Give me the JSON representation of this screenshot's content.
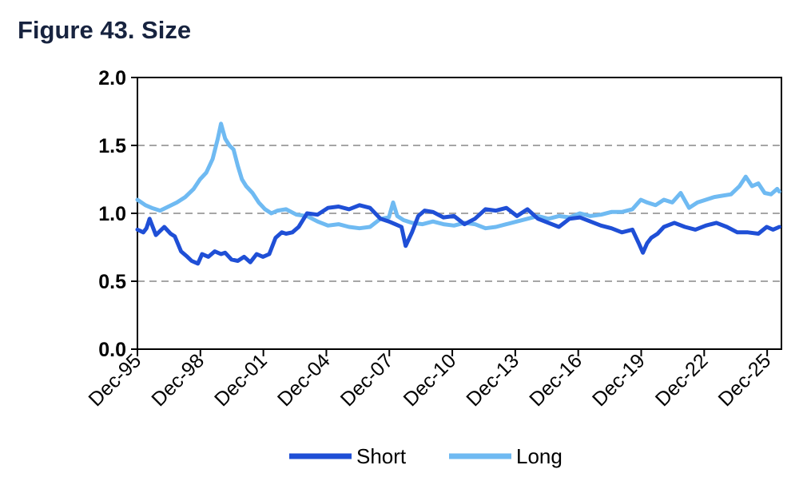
{
  "title": "Figure 43. Size",
  "colors": {
    "short": "#1f4fd6",
    "long": "#6fbaf2",
    "grid": "#a6a6a6",
    "axis": "#000000"
  },
  "chart_data": {
    "type": "line",
    "title": "Figure 43. Size",
    "xlabel": "",
    "ylabel": "",
    "ylim": [
      0.0,
      2.0
    ],
    "yticks": [
      0.0,
      0.5,
      1.0,
      1.5,
      2.0
    ],
    "ytick_labels": [
      "0.0",
      "0.5",
      "1.0",
      "1.5",
      "2.0"
    ],
    "xlim": [
      1995.92,
      2026.6
    ],
    "xtick_values": [
      1995.92,
      1998.92,
      2001.92,
      2004.92,
      2007.92,
      2010.92,
      2013.92,
      2016.92,
      2019.92,
      2022.92,
      2025.92
    ],
    "xtick_labels": [
      "Dec-95",
      "Dec-98",
      "Dec-01",
      "Dec-04",
      "Dec-07",
      "Dec-10",
      "Dec-13",
      "Dec-16",
      "Dec-19",
      "Dec-22",
      "Dec-25"
    ],
    "grid": "horizontal dashed",
    "legend": "bottom",
    "series": [
      {
        "name": "Short",
        "color": "#1f4fd6",
        "x": [
          1995.92,
          1996.2,
          1996.35,
          1996.5,
          1996.8,
          1997.2,
          1997.5,
          1997.7,
          1998.0,
          1998.3,
          1998.5,
          1998.8,
          1999.0,
          1999.3,
          1999.6,
          1999.9,
          2000.1,
          2000.4,
          2000.7,
          2001.0,
          2001.3,
          2001.6,
          2001.9,
          2002.2,
          2002.5,
          2002.8,
          2003.0,
          2003.3,
          2003.6,
          2004.0,
          2004.5,
          2005.0,
          2005.5,
          2006.0,
          2006.5,
          2007.0,
          2007.5,
          2007.9,
          2008.2,
          2008.5,
          2008.7,
          2009.0,
          2009.3,
          2009.6,
          2010.0,
          2010.5,
          2011.0,
          2011.5,
          2012.0,
          2012.5,
          2013.0,
          2013.5,
          2014.0,
          2014.5,
          2015.0,
          2015.5,
          2016.0,
          2016.5,
          2017.0,
          2017.5,
          2018.0,
          2018.5,
          2019.0,
          2019.5,
          2019.8,
          2020.0,
          2020.2,
          2020.4,
          2020.7,
          2021.0,
          2021.5,
          2022.0,
          2022.5,
          2023.0,
          2023.5,
          2024.0,
          2024.5,
          2025.0,
          2025.5,
          2025.9,
          2026.2,
          2026.5
        ],
        "values": [
          0.88,
          0.86,
          0.89,
          0.96,
          0.84,
          0.9,
          0.85,
          0.83,
          0.72,
          0.68,
          0.65,
          0.63,
          0.7,
          0.68,
          0.72,
          0.7,
          0.71,
          0.66,
          0.65,
          0.68,
          0.64,
          0.7,
          0.68,
          0.7,
          0.82,
          0.86,
          0.85,
          0.86,
          0.9,
          1.0,
          0.99,
          1.04,
          1.05,
          1.03,
          1.06,
          1.04,
          0.96,
          0.94,
          0.92,
          0.9,
          0.76,
          0.86,
          0.98,
          1.02,
          1.01,
          0.97,
          0.98,
          0.92,
          0.96,
          1.03,
          1.02,
          1.04,
          0.98,
          1.03,
          0.96,
          0.93,
          0.9,
          0.96,
          0.97,
          0.94,
          0.91,
          0.89,
          0.86,
          0.88,
          0.78,
          0.71,
          0.78,
          0.82,
          0.85,
          0.9,
          0.93,
          0.9,
          0.88,
          0.91,
          0.93,
          0.9,
          0.86,
          0.86,
          0.85,
          0.9,
          0.88,
          0.9
        ]
      },
      {
        "name": "Long",
        "color": "#6fbaf2",
        "x": [
          1995.92,
          1996.3,
          1996.6,
          1997.0,
          1997.4,
          1997.8,
          1998.2,
          1998.6,
          1998.9,
          1999.2,
          1999.5,
          1999.75,
          1999.9,
          2000.1,
          2000.3,
          2000.5,
          2000.7,
          2000.9,
          2001.1,
          2001.4,
          2001.7,
          2002.0,
          2002.3,
          2002.6,
          2003.0,
          2003.5,
          2004.0,
          2004.5,
          2005.0,
          2005.5,
          2006.0,
          2006.5,
          2007.0,
          2007.5,
          2007.9,
          2008.1,
          2008.3,
          2008.6,
          2009.0,
          2009.5,
          2010.0,
          2010.5,
          2011.0,
          2011.5,
          2012.0,
          2012.5,
          2013.0,
          2013.5,
          2014.0,
          2014.5,
          2015.0,
          2015.5,
          2016.0,
          2016.5,
          2017.0,
          2017.5,
          2018.0,
          2018.5,
          2019.0,
          2019.5,
          2019.9,
          2020.2,
          2020.6,
          2021.0,
          2021.4,
          2021.8,
          2022.2,
          2022.6,
          2023.0,
          2023.4,
          2023.8,
          2024.2,
          2024.6,
          2024.9,
          2025.2,
          2025.5,
          2025.8,
          2026.1,
          2026.4,
          2026.5
        ],
        "values": [
          1.1,
          1.06,
          1.04,
          1.02,
          1.05,
          1.08,
          1.12,
          1.18,
          1.25,
          1.3,
          1.4,
          1.55,
          1.66,
          1.55,
          1.5,
          1.47,
          1.35,
          1.25,
          1.2,
          1.15,
          1.08,
          1.03,
          1.0,
          1.02,
          1.03,
          0.99,
          0.98,
          0.94,
          0.91,
          0.92,
          0.9,
          0.89,
          0.9,
          0.96,
          0.97,
          1.08,
          0.98,
          0.95,
          0.93,
          0.92,
          0.94,
          0.92,
          0.91,
          0.93,
          0.92,
          0.89,
          0.9,
          0.92,
          0.94,
          0.96,
          0.98,
          0.96,
          0.98,
          0.97,
          1.0,
          0.98,
          0.99,
          1.01,
          1.01,
          1.03,
          1.1,
          1.08,
          1.06,
          1.1,
          1.08,
          1.15,
          1.04,
          1.08,
          1.1,
          1.12,
          1.13,
          1.14,
          1.2,
          1.27,
          1.2,
          1.22,
          1.15,
          1.14,
          1.18,
          1.16
        ]
      }
    ]
  }
}
